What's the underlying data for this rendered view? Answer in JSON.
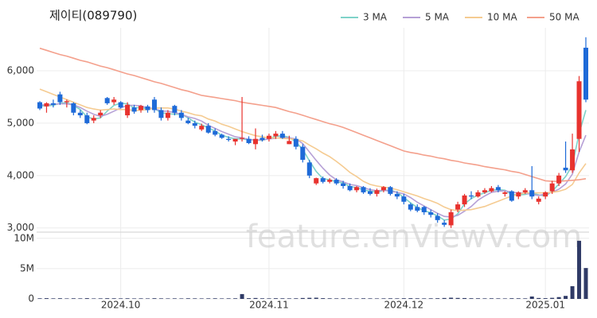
{
  "chart_data": {
    "type": "candlestick",
    "title": "제이티(089790)",
    "watermark": "feature.enViewV.com",
    "up_color": "#e8322e",
    "down_color": "#1e6ad8",
    "categories": [
      null,
      null,
      null,
      null,
      null,
      null,
      null,
      null,
      null,
      null,
      null,
      null,
      "2024.10",
      null,
      null,
      null,
      null,
      null,
      null,
      null,
      null,
      null,
      null,
      null,
      null,
      null,
      null,
      null,
      null,
      null,
      null,
      null,
      null,
      null,
      "2024.11",
      null,
      null,
      null,
      null,
      null,
      null,
      null,
      null,
      null,
      null,
      null,
      null,
      null,
      null,
      null,
      null,
      null,
      null,
      null,
      "2024.12",
      null,
      null,
      null,
      null,
      null,
      null,
      null,
      null,
      null,
      null,
      null,
      null,
      null,
      null,
      null,
      null,
      null,
      null,
      null,
      null,
      "2025.01",
      null,
      null,
      null,
      null,
      null,
      null
    ],
    "open": [
      5400,
      5320,
      5380,
      5550,
      5400,
      5380,
      5200,
      5150,
      5050,
      5150,
      5480,
      5400,
      5400,
      5150,
      5300,
      5250,
      5320,
      5450,
      5250,
      5100,
      5330,
      5200,
      5050,
      5000,
      4880,
      4950,
      4850,
      4780,
      4700,
      4650,
      4700,
      4700,
      4600,
      4720,
      4700,
      4750,
      4800,
      4600,
      4700,
      4550,
      4250,
      3850,
      3950,
      3880,
      3920,
      3850,
      3800,
      3720,
      3780,
      3700,
      3650,
      3720,
      3780,
      3650,
      3600,
      3450,
      3400,
      3400,
      3300,
      3230,
      3100,
      3050,
      3350,
      3450,
      3620,
      3600,
      3680,
      3700,
      3780,
      3650,
      3700,
      3600,
      3680,
      3720,
      3500,
      3600,
      3700,
      3850,
      4150,
      4100,
      4700,
      6440
    ],
    "high": [
      5420,
      5400,
      5450,
      5600,
      5450,
      5400,
      5250,
      5200,
      5150,
      5250,
      5500,
      5500,
      5420,
      5400,
      5350,
      5350,
      5350,
      5500,
      5300,
      5250,
      5350,
      5250,
      5100,
      5050,
      4990,
      5000,
      4900,
      4800,
      4750,
      4700,
      5500,
      4750,
      4900,
      4780,
      4800,
      4850,
      4850,
      4760,
      4750,
      4600,
      4300,
      3960,
      3980,
      3950,
      3950,
      3900,
      3850,
      3800,
      3800,
      3760,
      3750,
      3800,
      3800,
      3700,
      3650,
      3480,
      3450,
      3420,
      3350,
      3280,
      3150,
      3350,
      3500,
      3650,
      3700,
      3720,
      3760,
      3800,
      3820,
      3700,
      3720,
      3700,
      3760,
      4180,
      3600,
      3700,
      3900,
      4050,
      4650,
      4800,
      5900,
      6640
    ],
    "low": [
      5250,
      5200,
      5300,
      5350,
      5300,
      5150,
      5100,
      4980,
      5000,
      5100,
      5350,
      5350,
      5280,
      5100,
      5180,
      5200,
      5200,
      5200,
      5050,
      5050,
      5150,
      5050,
      4980,
      4900,
      4850,
      4800,
      4750,
      4700,
      4650,
      4580,
      4650,
      4600,
      4500,
      4650,
      4650,
      4700,
      4700,
      4600,
      4500,
      4250,
      3950,
      3820,
      3850,
      3850,
      3820,
      3750,
      3700,
      3680,
      3650,
      3620,
      3600,
      3680,
      3620,
      3550,
      3450,
      3320,
      3300,
      3250,
      3200,
      3100,
      3020,
      3000,
      3300,
      3400,
      3550,
      3580,
      3650,
      3680,
      3680,
      3600,
      3500,
      3550,
      3650,
      3550,
      3450,
      3550,
      3650,
      3800,
      4050,
      4050,
      4450,
      5400
    ],
    "close": [
      5280,
      5380,
      5350,
      5400,
      5420,
      5200,
      5150,
      5000,
      5100,
      5200,
      5380,
      5450,
      5300,
      5350,
      5220,
      5330,
      5250,
      5250,
      5100,
      5200,
      5200,
      5100,
      5000,
      4950,
      4950,
      4820,
      4780,
      4720,
      4680,
      4700,
      4720,
      4620,
      4700,
      4680,
      4760,
      4800,
      4720,
      4660,
      4550,
      4300,
      4000,
      3950,
      3880,
      3920,
      3850,
      3800,
      3720,
      3780,
      3680,
      3650,
      3720,
      3780,
      3650,
      3600,
      3500,
      3350,
      3330,
      3300,
      3250,
      3150,
      3060,
      3300,
      3450,
      3620,
      3600,
      3680,
      3720,
      3760,
      3720,
      3680,
      3520,
      3680,
      3720,
      3600,
      3560,
      3680,
      3850,
      4000,
      4100,
      4500,
      5800,
      5450
    ],
    "series": [
      {
        "name": "3 MA",
        "color": "#7fd3c9",
        "values": [
          5330,
          5330,
          5340,
          5380,
          5390,
          5340,
          5260,
          5120,
          5080,
          5100,
          5230,
          5340,
          5380,
          5370,
          5290,
          5300,
          5270,
          5280,
          5200,
          5180,
          5170,
          5170,
          5100,
          5020,
          4970,
          4910,
          4850,
          4770,
          4730,
          4700,
          4700,
          4680,
          4680,
          4670,
          4710,
          4750,
          4760,
          4730,
          4640,
          4500,
          4280,
          4080,
          3940,
          3920,
          3880,
          3860,
          3790,
          3770,
          3730,
          3700,
          3680,
          3720,
          3720,
          3680,
          3580,
          3480,
          3390,
          3330,
          3290,
          3230,
          3150,
          3170,
          3270,
          3460,
          3560,
          3630,
          3670,
          3720,
          3730,
          3720,
          3640,
          3630,
          3640,
          3670,
          3630,
          3610,
          3700,
          3840,
          3980,
          4200,
          4800,
          5250
        ]
      },
      {
        "name": "5 MA",
        "color": "#b6a0d6",
        "values": [
          5350,
          5350,
          5360,
          5370,
          5370,
          5350,
          5300,
          5230,
          5170,
          5130,
          5170,
          5230,
          5290,
          5340,
          5340,
          5330,
          5290,
          5280,
          5230,
          5230,
          5200,
          5170,
          5120,
          5090,
          5040,
          4960,
          4900,
          4840,
          4790,
          4740,
          4720,
          4690,
          4680,
          4680,
          4700,
          4710,
          4730,
          4720,
          4700,
          4610,
          4450,
          4290,
          4140,
          4010,
          3920,
          3880,
          3830,
          3810,
          3770,
          3730,
          3710,
          3720,
          3700,
          3680,
          3650,
          3580,
          3490,
          3420,
          3350,
          3280,
          3220,
          3210,
          3240,
          3320,
          3410,
          3530,
          3610,
          3680,
          3700,
          3710,
          3680,
          3670,
          3660,
          3640,
          3620,
          3650,
          3680,
          3740,
          3840,
          4030,
          4450,
          4770
        ]
      },
      {
        "name": "10 MA",
        "color": "#f5cb91",
        "values": [
          5650,
          5600,
          5550,
          5500,
          5450,
          5400,
          5350,
          5300,
          5270,
          5250,
          5260,
          5270,
          5260,
          5260,
          5240,
          5250,
          5260,
          5290,
          5290,
          5290,
          5270,
          5230,
          5200,
          5160,
          5140,
          5080,
          5040,
          4980,
          4940,
          4890,
          4840,
          4800,
          4760,
          4740,
          4720,
          4720,
          4710,
          4700,
          4690,
          4660,
          4580,
          4510,
          4430,
          4360,
          4270,
          4170,
          4060,
          3980,
          3890,
          3830,
          3800,
          3780,
          3760,
          3730,
          3690,
          3650,
          3610,
          3560,
          3520,
          3470,
          3400,
          3350,
          3330,
          3340,
          3350,
          3380,
          3410,
          3460,
          3510,
          3560,
          3610,
          3640,
          3670,
          3670,
          3670,
          3670,
          3680,
          3700,
          3740,
          3830,
          4050,
          4230
        ]
      },
      {
        "name": "50 MA",
        "color": "#f4a08c",
        "values": [
          6430,
          6390,
          6350,
          6310,
          6280,
          6240,
          6200,
          6170,
          6130,
          6090,
          6060,
          6020,
          5980,
          5940,
          5910,
          5870,
          5830,
          5790,
          5760,
          5720,
          5680,
          5640,
          5610,
          5570,
          5530,
          5510,
          5490,
          5470,
          5450,
          5430,
          5400,
          5380,
          5360,
          5340,
          5320,
          5300,
          5260,
          5220,
          5190,
          5150,
          5110,
          5070,
          5030,
          4990,
          4960,
          4920,
          4870,
          4820,
          4770,
          4720,
          4670,
          4620,
          4570,
          4520,
          4470,
          4440,
          4420,
          4390,
          4370,
          4340,
          4320,
          4290,
          4270,
          4240,
          4220,
          4200,
          4170,
          4150,
          4130,
          4110,
          4080,
          4060,
          4020,
          3980,
          3940,
          3900,
          3890,
          3890,
          3900,
          3910,
          3920,
          3940
        ]
      }
    ],
    "ylim": [
      2920,
      6820
    ],
    "yticks": [
      {
        "value": 3000,
        "label": "3,000"
      },
      {
        "value": 4000,
        "label": "4,000"
      },
      {
        "value": 5000,
        "label": "5,000"
      },
      {
        "value": 6000,
        "label": "6,000"
      }
    ],
    "grid": true,
    "legend": "top-right",
    "volume": {
      "color": "#2f3a66",
      "values": [
        100000,
        120000,
        90000,
        110000,
        80000,
        100000,
        90000,
        120000,
        80000,
        90000,
        110000,
        100000,
        90000,
        100000,
        80000,
        90000,
        80000,
        110000,
        90000,
        80000,
        90000,
        80000,
        100000,
        90000,
        80000,
        90000,
        100000,
        80000,
        90000,
        100000,
        800000,
        120000,
        150000,
        100000,
        90000,
        110000,
        100000,
        90000,
        100000,
        150000,
        180000,
        200000,
        120000,
        100000,
        90000,
        100000,
        90000,
        80000,
        100000,
        90000,
        80000,
        90000,
        100000,
        90000,
        110000,
        120000,
        100000,
        90000,
        100000,
        110000,
        150000,
        200000,
        160000,
        140000,
        110000,
        100000,
        90000,
        100000,
        90000,
        80000,
        110000,
        100000,
        90000,
        400000,
        150000,
        120000,
        180000,
        300000,
        500000,
        2100000,
        9600000,
        5100000
      ],
      "ylim": [
        0,
        10500000
      ],
      "yticks": [
        {
          "value": 0,
          "label": "0"
        },
        {
          "value": 5000000,
          "label": "5M"
        },
        {
          "value": 10000000,
          "label": "10M"
        }
      ]
    }
  }
}
